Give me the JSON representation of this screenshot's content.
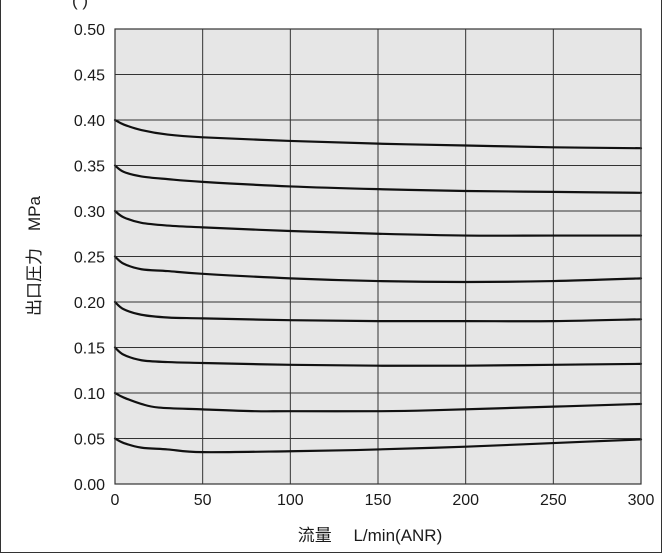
{
  "page": {
    "top_fragment": "(  )"
  },
  "chart_data": {
    "type": "line",
    "xlabel": "流量　 L/min(ANR)",
    "ylabel": "出口圧力　MPa",
    "xlim": [
      0,
      300
    ],
    "ylim": [
      0,
      0.5
    ],
    "x_ticks": [
      "0",
      "50",
      "100",
      "150",
      "200",
      "250",
      "300"
    ],
    "y_ticks": [
      "0.00",
      "0.05",
      "0.10",
      "0.15",
      "0.20",
      "0.25",
      "0.30",
      "0.35",
      "0.40",
      "0.45",
      "0.50"
    ],
    "grid": true,
    "colors": {
      "plot_background": "#e6e6e6",
      "grid": "#333333",
      "line": "#111111"
    },
    "series": [
      {
        "x": [
          0,
          5,
          15,
          30,
          50,
          100,
          150,
          200,
          250,
          300
        ],
        "values": [
          0.4,
          0.395,
          0.389,
          0.384,
          0.381,
          0.377,
          0.374,
          0.372,
          0.37,
          0.369
        ]
      },
      {
        "x": [
          0,
          5,
          15,
          30,
          50,
          100,
          150,
          200,
          250,
          300
        ],
        "values": [
          0.35,
          0.343,
          0.338,
          0.335,
          0.332,
          0.327,
          0.324,
          0.322,
          0.321,
          0.32
        ]
      },
      {
        "x": [
          0,
          5,
          15,
          30,
          50,
          100,
          150,
          200,
          250,
          300
        ],
        "values": [
          0.3,
          0.293,
          0.287,
          0.284,
          0.282,
          0.278,
          0.275,
          0.273,
          0.273,
          0.273
        ]
      },
      {
        "x": [
          0,
          5,
          15,
          30,
          50,
          100,
          150,
          200,
          250,
          300
        ],
        "values": [
          0.25,
          0.242,
          0.236,
          0.234,
          0.231,
          0.226,
          0.223,
          0.222,
          0.223,
          0.226
        ]
      },
      {
        "x": [
          0,
          5,
          15,
          30,
          50,
          100,
          150,
          200,
          250,
          300
        ],
        "values": [
          0.2,
          0.192,
          0.186,
          0.183,
          0.182,
          0.18,
          0.179,
          0.179,
          0.179,
          0.181
        ]
      },
      {
        "x": [
          0,
          5,
          15,
          30,
          50,
          100,
          150,
          200,
          250,
          300
        ],
        "values": [
          0.15,
          0.142,
          0.136,
          0.134,
          0.133,
          0.131,
          0.13,
          0.13,
          0.131,
          0.132
        ]
      },
      {
        "x": [
          0,
          5,
          15,
          25,
          50,
          80,
          100,
          150,
          180,
          250,
          300
        ],
        "values": [
          0.1,
          0.095,
          0.088,
          0.084,
          0.082,
          0.08,
          0.08,
          0.08,
          0.081,
          0.085,
          0.088
        ]
      },
      {
        "x": [
          0,
          5,
          15,
          30,
          50,
          100,
          130,
          150,
          200,
          250,
          300
        ],
        "values": [
          0.05,
          0.045,
          0.04,
          0.038,
          0.035,
          0.036,
          0.037,
          0.038,
          0.041,
          0.045,
          0.049
        ]
      }
    ]
  }
}
